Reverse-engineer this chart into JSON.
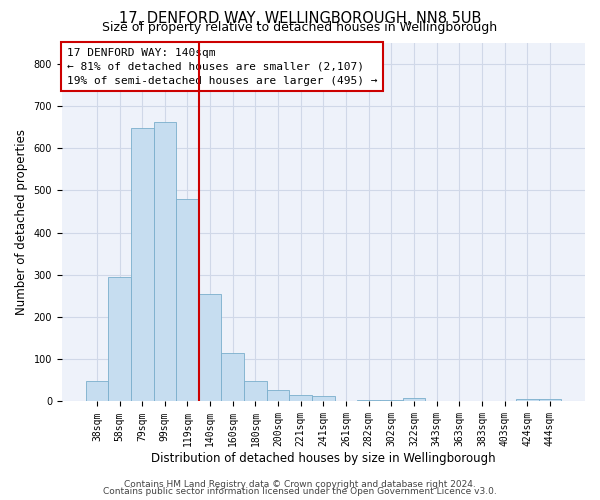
{
  "title_line1": "17, DENFORD WAY, WELLINGBOROUGH, NN8 5UB",
  "title_line2": "Size of property relative to detached houses in Wellingborough",
  "xlabel": "Distribution of detached houses by size in Wellingborough",
  "ylabel": "Number of detached properties",
  "bar_labels": [
    "38sqm",
    "58sqm",
    "79sqm",
    "99sqm",
    "119sqm",
    "140sqm",
    "160sqm",
    "180sqm",
    "200sqm",
    "221sqm",
    "241sqm",
    "261sqm",
    "282sqm",
    "302sqm",
    "322sqm",
    "343sqm",
    "363sqm",
    "383sqm",
    "403sqm",
    "424sqm",
    "444sqm"
  ],
  "bar_values": [
    48,
    295,
    648,
    661,
    480,
    254,
    114,
    49,
    28,
    15,
    13,
    2,
    4,
    3,
    8,
    1,
    2,
    1,
    1,
    5,
    7
  ],
  "bar_color": "#c6ddf0",
  "bar_edge_color": "#7aaecc",
  "highlight_index": 5,
  "highlight_line_color": "#cc0000",
  "annotation_text_line1": "17 DENFORD WAY: 140sqm",
  "annotation_text_line2": "← 81% of detached houses are smaller (2,107)",
  "annotation_text_line3": "19% of semi-detached houses are larger (495) →",
  "annotation_box_color": "#cc0000",
  "ylim": [
    0,
    850
  ],
  "yticks": [
    0,
    100,
    200,
    300,
    400,
    500,
    600,
    700,
    800
  ],
  "grid_color": "#d0d8e8",
  "bg_color": "#eef2fa",
  "footer_line1": "Contains HM Land Registry data © Crown copyright and database right 2024.",
  "footer_line2": "Contains public sector information licensed under the Open Government Licence v3.0.",
  "title_fontsize": 10.5,
  "subtitle_fontsize": 9,
  "axis_label_fontsize": 8.5,
  "tick_fontsize": 7,
  "annotation_fontsize": 8,
  "footer_fontsize": 6.5
}
